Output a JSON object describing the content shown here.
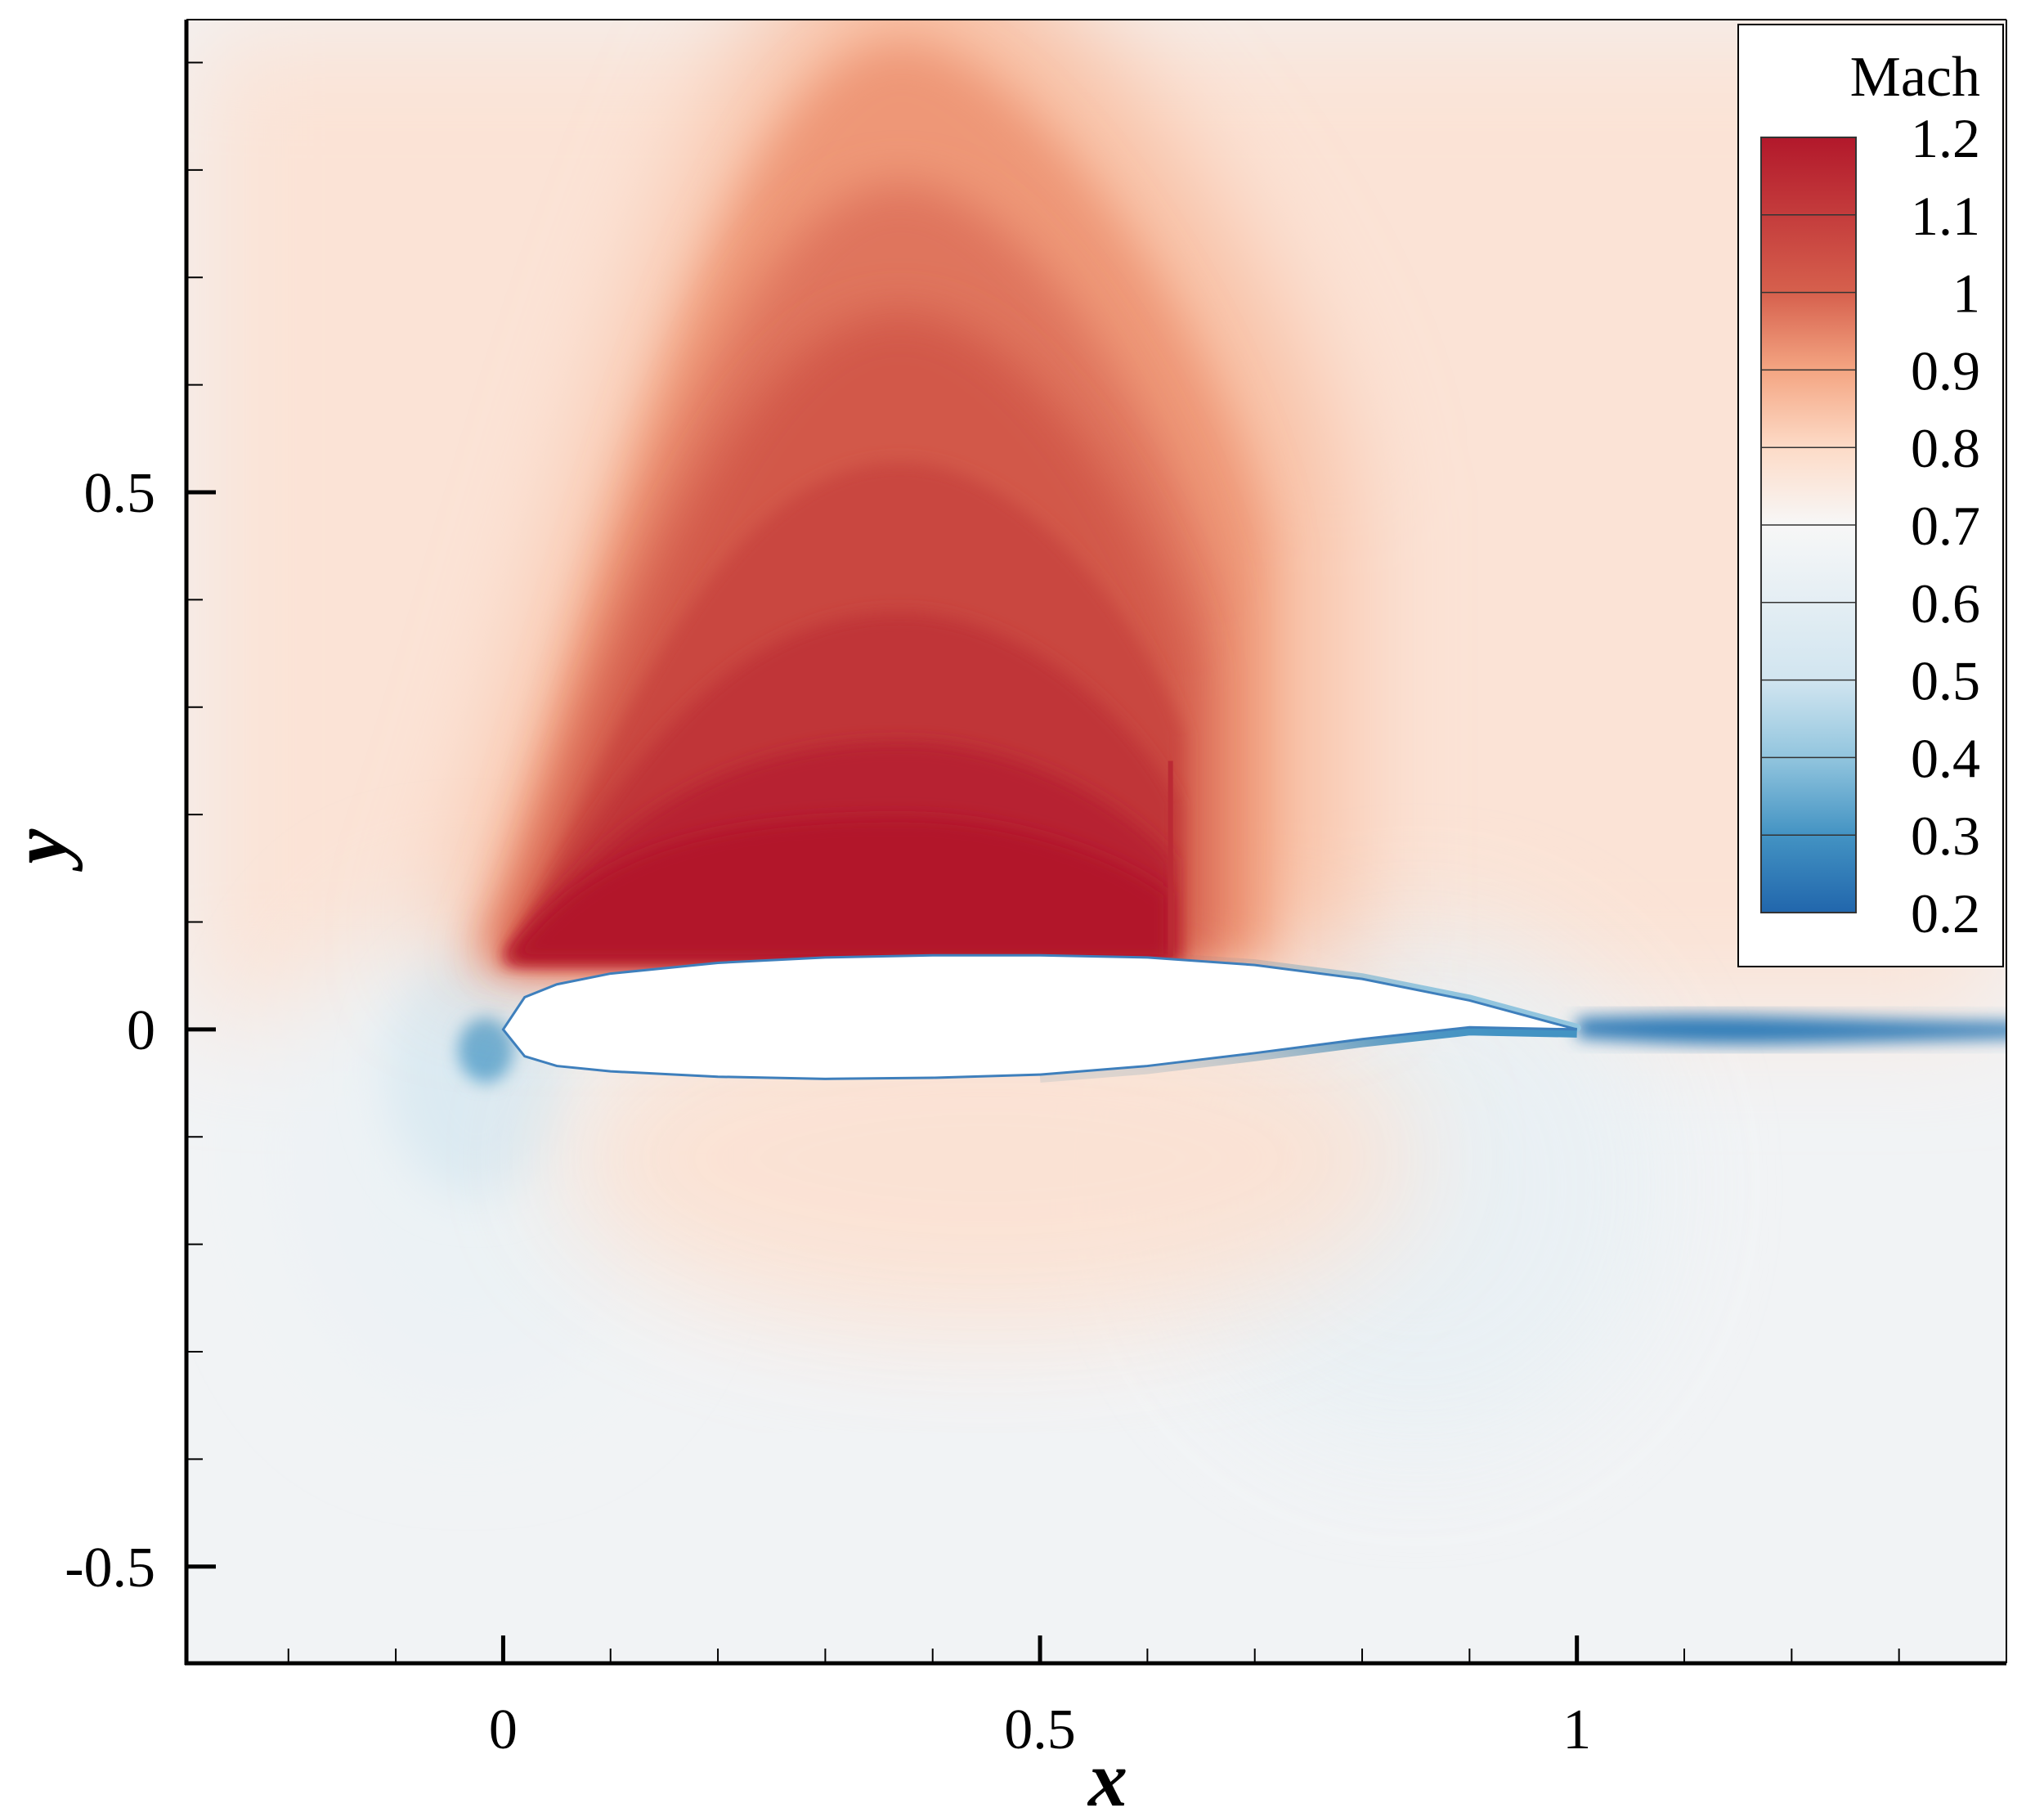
{
  "chart_data": {
    "type": "heatmap",
    "xlabel": "x",
    "ylabel": "y",
    "xlim": [
      -0.295,
      1.4
    ],
    "ylim": [
      -0.59,
      0.94
    ],
    "x_major_ticks": [
      0,
      0.5,
      1
    ],
    "x_tick_labels": [
      "0",
      "0.5",
      "1"
    ],
    "x_minor_step": 0.1,
    "y_major_ticks": [
      0.5,
      0,
      -0.5
    ],
    "y_tick_labels": [
      "0.5",
      "0",
      "-0.5"
    ],
    "y_minor_step": 0.1,
    "grid": false,
    "legend": {
      "title": "Mach",
      "placement": "top-right",
      "levels": [
        1.2,
        1.1,
        1,
        0.9,
        0.8,
        0.7,
        0.6,
        0.5,
        0.4,
        0.3,
        0.2
      ],
      "labels": [
        "1.2",
        "1.1",
        "1",
        "0.9",
        "0.8",
        "0.7",
        "0.6",
        "0.5",
        "0.4",
        "0.3",
        "0.2"
      ],
      "colors": [
        "#b2182b",
        "#d6604d",
        "#f4a582",
        "#fddbc7",
        "#f7f7f7",
        "#d1e5f0",
        "#92c5de",
        "#4393c3",
        "#2166ac"
      ],
      "color_stops": [
        0.2,
        0.3,
        0.4,
        0.5,
        0.7,
        0.8,
        0.9,
        1.0,
        1.2
      ]
    },
    "freestream_mach": 0.72,
    "airfoil": {
      "leading_edge": [
        0,
        0
      ],
      "trailing_edge": [
        1,
        0
      ],
      "upper_surface": [
        [
          0,
          0
        ],
        [
          0.02,
          0.03
        ],
        [
          0.05,
          0.042
        ],
        [
          0.1,
          0.052
        ],
        [
          0.2,
          0.062
        ],
        [
          0.3,
          0.067
        ],
        [
          0.4,
          0.069
        ],
        [
          0.5,
          0.069
        ],
        [
          0.6,
          0.067
        ],
        [
          0.7,
          0.06
        ],
        [
          0.8,
          0.047
        ],
        [
          0.9,
          0.027
        ],
        [
          1,
          0
        ]
      ],
      "lower_surface": [
        [
          0,
          0
        ],
        [
          0.02,
          -0.025
        ],
        [
          0.05,
          -0.034
        ],
        [
          0.1,
          -0.039
        ],
        [
          0.2,
          -0.044
        ],
        [
          0.3,
          -0.046
        ],
        [
          0.4,
          -0.045
        ],
        [
          0.5,
          -0.042
        ],
        [
          0.6,
          -0.034
        ],
        [
          0.7,
          -0.022
        ],
        [
          0.8,
          -0.009
        ],
        [
          0.9,
          0.002
        ],
        [
          1,
          0
        ]
      ]
    },
    "supersonic_region": {
      "peak_mach": 1.2,
      "x_range": [
        0,
        0.62
      ],
      "max_height": 0.94,
      "shock_x": 0.62
    },
    "low_speed_regions": [
      {
        "name": "stagnation",
        "x": -0.01,
        "y": -0.01,
        "min_mach": 0.35
      },
      {
        "name": "lower-aft",
        "x": 0.85,
        "y": -0.1,
        "min_mach": 0.62
      },
      {
        "name": "wake",
        "x_range": [
          1.0,
          1.4
        ],
        "y": 0.0,
        "min_mach": 0.25
      }
    ]
  }
}
